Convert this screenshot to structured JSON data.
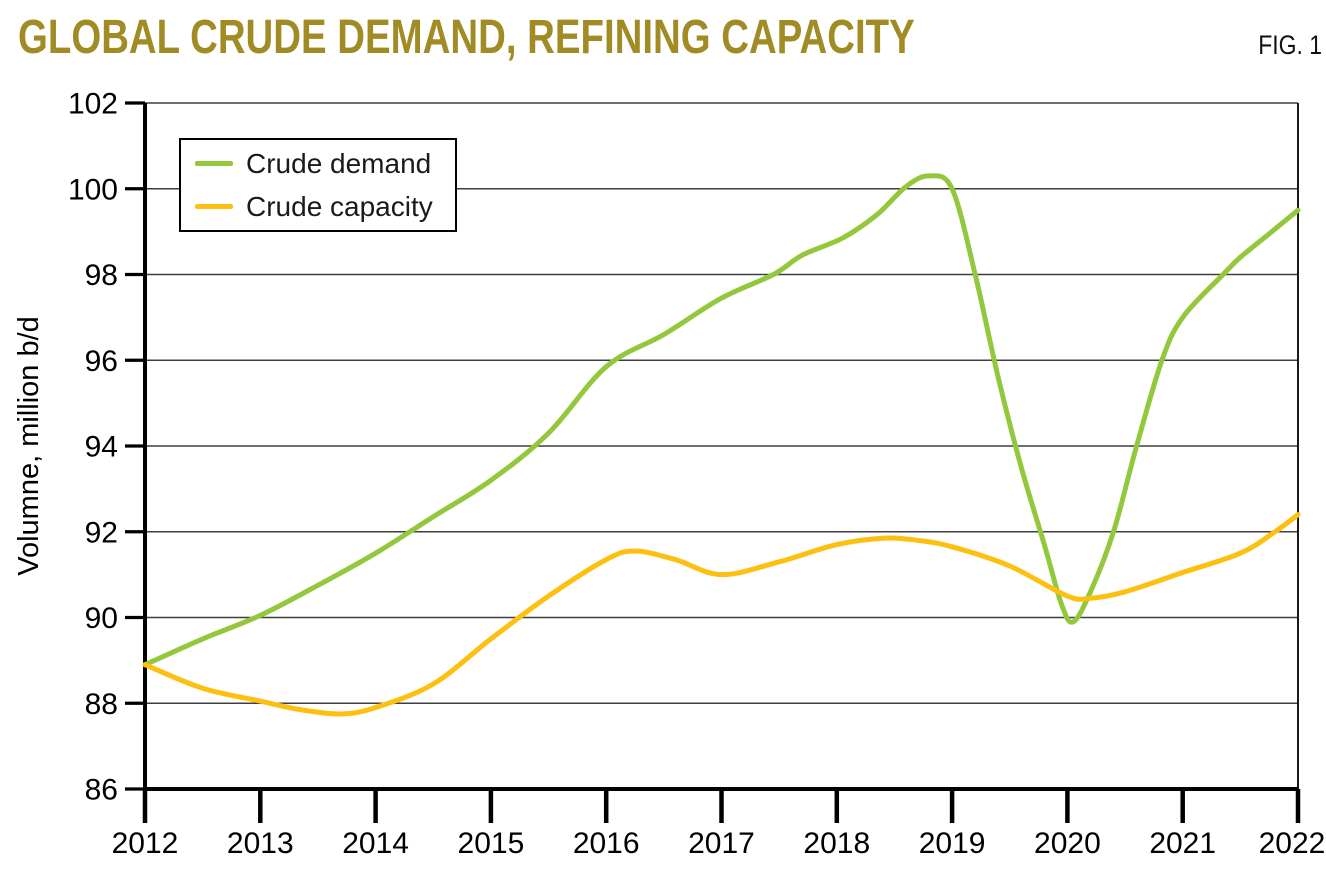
{
  "header": {
    "title": "GLOBAL CRUDE DEMAND, REFINING CAPACITY",
    "fig_label": "FIG. 1"
  },
  "colors": {
    "title_gold": "#A18B24",
    "axis": "#000000",
    "grid": "#3f3f3f",
    "right_spine": "#1a1a1a",
    "crude_demand_green": "#93C83D",
    "crude_capacity_yellow": "#FDC010"
  },
  "chart_data": {
    "type": "line",
    "title": "GLOBAL CRUDE DEMAND, REFINING CAPACITY",
    "xlabel": "",
    "ylabel": "Volumne, million b/d",
    "xlim": [
      2012,
      2022
    ],
    "ylim": [
      86,
      102
    ],
    "xticks": [
      2012,
      2013,
      2014,
      2015,
      2016,
      2017,
      2018,
      2019,
      2020,
      2021,
      2022
    ],
    "yticks": [
      86,
      88,
      90,
      92,
      94,
      96,
      98,
      100,
      102
    ],
    "grid": "horizontal",
    "legend_position": "top-left",
    "series": [
      {
        "name": "Crude demand",
        "color": "#93C83D",
        "points": [
          [
            2012.0,
            88.9
          ],
          [
            2012.5,
            89.5
          ],
          [
            2013.0,
            90.05
          ],
          [
            2013.5,
            90.75
          ],
          [
            2014.0,
            91.5
          ],
          [
            2014.5,
            92.35
          ],
          [
            2015.0,
            93.2
          ],
          [
            2015.5,
            94.3
          ],
          [
            2016.0,
            95.85
          ],
          [
            2016.5,
            96.6
          ],
          [
            2017.0,
            97.45
          ],
          [
            2017.45,
            98.0
          ],
          [
            2017.7,
            98.45
          ],
          [
            2018.05,
            98.85
          ],
          [
            2018.35,
            99.4
          ],
          [
            2018.6,
            100.05
          ],
          [
            2018.8,
            100.3
          ],
          [
            2019.0,
            100.0
          ],
          [
            2019.2,
            98.0
          ],
          [
            2019.4,
            95.6
          ],
          [
            2019.6,
            93.5
          ],
          [
            2019.8,
            91.7
          ],
          [
            2019.95,
            90.3
          ],
          [
            2020.05,
            89.9
          ],
          [
            2020.2,
            90.6
          ],
          [
            2020.4,
            92.0
          ],
          [
            2020.6,
            94.0
          ],
          [
            2020.82,
            96.0
          ],
          [
            2021.0,
            97.0
          ],
          [
            2021.35,
            98.0
          ],
          [
            2021.5,
            98.4
          ],
          [
            2021.75,
            98.95
          ],
          [
            2022.0,
            99.5
          ]
        ]
      },
      {
        "name": "Crude capacity",
        "color": "#FDC010",
        "points": [
          [
            2012.0,
            88.9
          ],
          [
            2012.5,
            88.35
          ],
          [
            2013.0,
            88.05
          ],
          [
            2013.35,
            87.85
          ],
          [
            2013.7,
            87.75
          ],
          [
            2014.0,
            87.9
          ],
          [
            2014.5,
            88.45
          ],
          [
            2015.0,
            89.5
          ],
          [
            2015.5,
            90.5
          ],
          [
            2016.0,
            91.35
          ],
          [
            2016.25,
            91.55
          ],
          [
            2016.6,
            91.35
          ],
          [
            2017.0,
            91.0
          ],
          [
            2017.5,
            91.3
          ],
          [
            2018.0,
            91.7
          ],
          [
            2018.4,
            91.85
          ],
          [
            2018.7,
            91.8
          ],
          [
            2019.0,
            91.65
          ],
          [
            2019.5,
            91.2
          ],
          [
            2020.0,
            90.5
          ],
          [
            2020.2,
            90.45
          ],
          [
            2020.5,
            90.6
          ],
          [
            2021.0,
            91.05
          ],
          [
            2021.5,
            91.5
          ],
          [
            2021.8,
            92.0
          ],
          [
            2022.0,
            92.4
          ]
        ]
      }
    ]
  }
}
